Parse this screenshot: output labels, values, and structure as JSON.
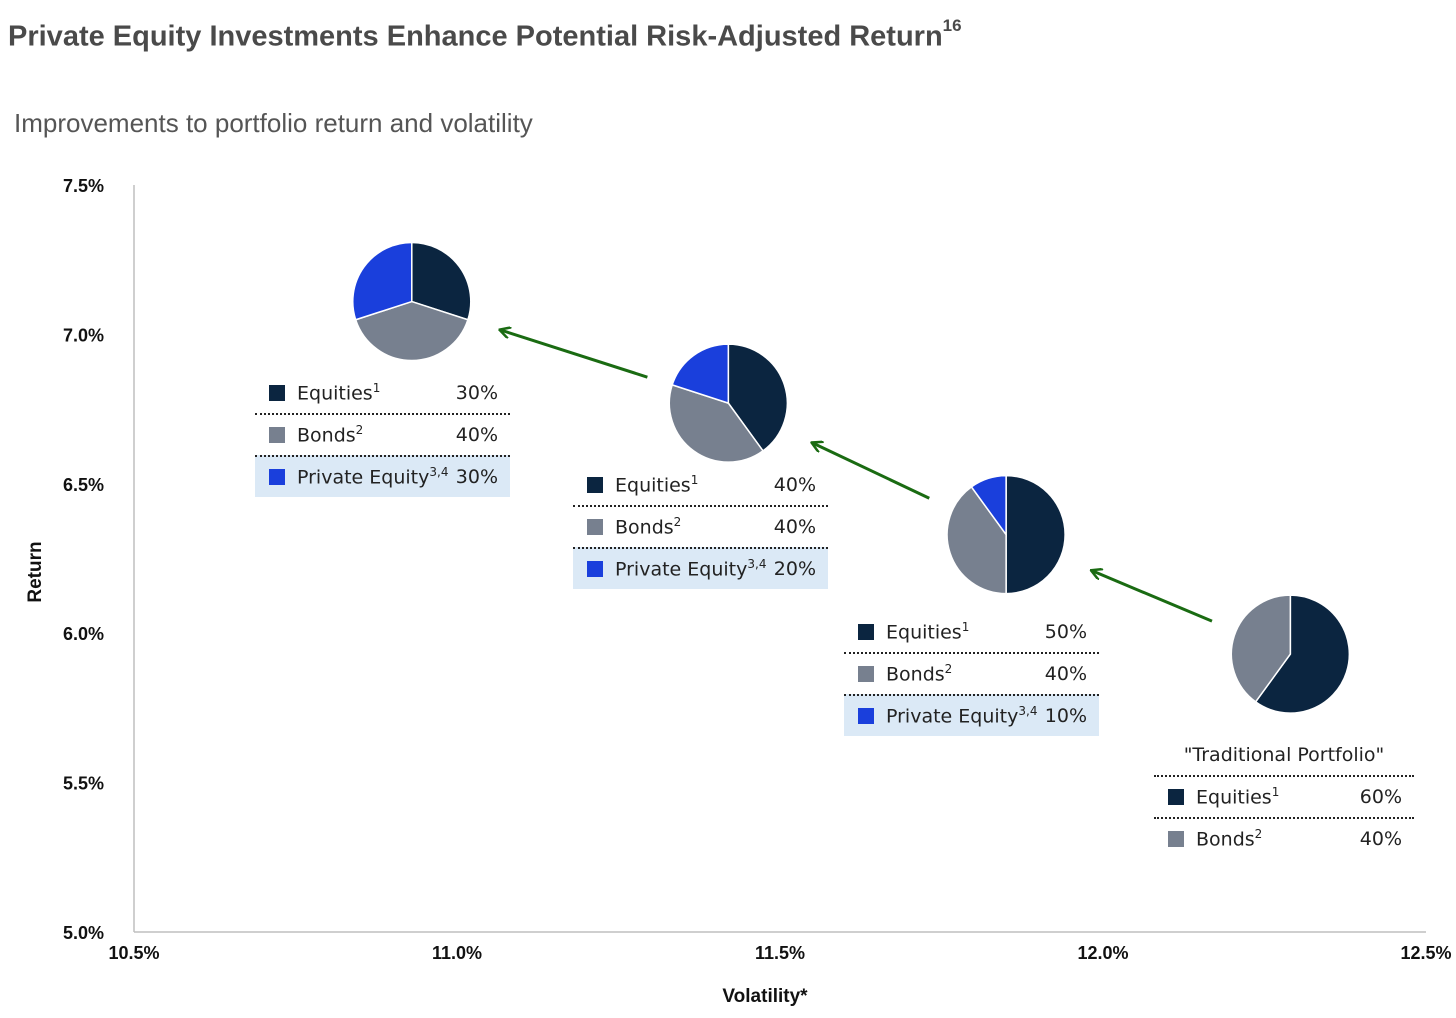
{
  "header": {
    "title": "Private Equity Investments Enhance Potential Risk-Adjusted Return",
    "title_footnote": "16",
    "subtitle": "Improvements to portfolio return and volatility"
  },
  "colors": {
    "equities": "#0b2540",
    "bonds": "#77808f",
    "private_equity": "#1a3fdc",
    "arrow": "#1a6b12",
    "pe_row_bg": "#dbe9f6"
  },
  "legend_labels": {
    "equities": "Equities",
    "equities_note": "1",
    "bonds": "Bonds",
    "bonds_note": "2",
    "private_equity": "Private Equity",
    "private_equity_note": "3,4"
  },
  "traditional_caption": "\"Traditional Portfolio\"",
  "chart_data": {
    "type": "scatter",
    "xlabel": "Volatility*",
    "ylabel": "Return",
    "xlim": [
      10.5,
      12.5
    ],
    "ylim": [
      5.0,
      7.5
    ],
    "x_ticks": [
      "10.5%",
      "11.0%",
      "11.5%",
      "12.0%",
      "12.5%"
    ],
    "y_ticks": [
      "7.5%",
      "7.0%",
      "6.5%",
      "6.0%",
      "5.5%",
      "5.0%"
    ],
    "grid": false,
    "portfolios": [
      {
        "x": 12.29,
        "y": 5.93,
        "equities": 60,
        "bonds": 40,
        "private_equity": 0,
        "equities_label": "60%",
        "bonds_label": "40%",
        "private_equity_label": ""
      },
      {
        "x": 11.85,
        "y": 6.33,
        "equities": 50,
        "bonds": 40,
        "private_equity": 10,
        "equities_label": "50%",
        "bonds_label": "40%",
        "private_equity_label": "10%"
      },
      {
        "x": 11.42,
        "y": 6.77,
        "equities": 40,
        "bonds": 40,
        "private_equity": 20,
        "equities_label": "40%",
        "bonds_label": "40%",
        "private_equity_label": "20%"
      },
      {
        "x": 10.93,
        "y": 7.11,
        "equities": 30,
        "bonds": 40,
        "private_equity": 30,
        "equities_label": "30%",
        "bonds_label": "40%",
        "private_equity_label": "30%"
      }
    ]
  }
}
